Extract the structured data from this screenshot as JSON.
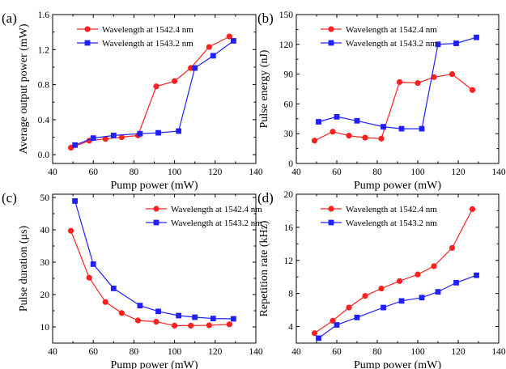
{
  "chart_data": [
    {
      "type": "line",
      "panel_label": "(a)",
      "xlabel": "Pump power (mW)",
      "ylabel": "Average output power (mW)",
      "xlim": [
        40,
        140
      ],
      "ylim": [
        -0.1,
        1.6
      ],
      "xticks": [
        40,
        60,
        80,
        100,
        120,
        140
      ],
      "yticks": [
        0.0,
        0.4,
        0.8,
        1.2,
        1.6
      ],
      "ytick_labels": [
        "0.0",
        "0.4",
        "0.8",
        "1.2",
        "1.6"
      ],
      "legend_position": "top-left",
      "series": [
        {
          "name": "Wavelength at 1542.4 nm",
          "color": "#ff2020",
          "marker": "circle",
          "x": [
            49,
            58,
            66,
            74,
            82,
            91,
            100,
            108,
            117,
            127
          ],
          "y": [
            0.08,
            0.16,
            0.18,
            0.2,
            0.22,
            0.78,
            0.84,
            0.99,
            1.23,
            1.35
          ]
        },
        {
          "name": "Wavelength at 1543.2 nm",
          "color": "#2020ff",
          "marker": "square",
          "x": [
            51,
            60,
            70,
            83,
            92,
            102,
            110,
            119,
            129
          ],
          "y": [
            0.11,
            0.19,
            0.22,
            0.24,
            0.25,
            0.27,
            0.99,
            1.13,
            1.3
          ]
        }
      ]
    },
    {
      "type": "line",
      "panel_label": "(b)",
      "xlabel": "Pump power (mW)",
      "ylabel": "Pulse energy (nJ)",
      "xlim": [
        40,
        140
      ],
      "ylim": [
        0,
        150
      ],
      "xticks": [
        40,
        60,
        80,
        100,
        120,
        140
      ],
      "yticks": [
        0,
        30,
        60,
        90,
        120,
        150
      ],
      "ytick_labels": [
        "0",
        "30",
        "60",
        "90",
        "120",
        "150"
      ],
      "legend_position": "top-left",
      "series": [
        {
          "name": "Wavelength at 1542.4 nm",
          "color": "#ff2020",
          "marker": "circle",
          "x": [
            49,
            58,
            66,
            74,
            82,
            91,
            100,
            108,
            117,
            127
          ],
          "y": [
            23,
            32,
            28,
            26,
            25,
            82,
            81,
            87,
            90,
            74
          ]
        },
        {
          "name": "Wavelength at 1543.2 nm",
          "color": "#2020ff",
          "marker": "square",
          "x": [
            51,
            60,
            70,
            83,
            92,
            102,
            110,
            119,
            129
          ],
          "y": [
            42,
            47,
            43,
            37,
            35,
            35,
            120,
            121,
            127
          ]
        }
      ]
    },
    {
      "type": "line",
      "panel_label": "(c)",
      "xlabel": "Pump power (mW)",
      "ylabel": "Pulse duration (μs)",
      "xlim": [
        40,
        140
      ],
      "ylim": [
        5,
        51
      ],
      "xticks": [
        40,
        60,
        80,
        100,
        120,
        140
      ],
      "yticks": [
        10,
        20,
        30,
        40,
        50
      ],
      "ytick_labels": [
        "10",
        "20",
        "30",
        "40",
        "50"
      ],
      "legend_position": "top-right",
      "series": [
        {
          "name": "Wavelength at 1542.4 nm",
          "color": "#ff2020",
          "marker": "circle",
          "x": [
            49,
            58,
            66,
            74,
            82,
            91,
            100,
            108,
            117,
            127
          ],
          "y": [
            39.7,
            25.2,
            17.7,
            14.3,
            12.0,
            11.6,
            10.4,
            10.4,
            10.5,
            10.8
          ]
        },
        {
          "name": "Wavelength at 1543.2 nm",
          "color": "#2020ff",
          "marker": "square",
          "x": [
            51,
            60,
            70,
            83,
            92,
            102,
            110,
            119,
            129
          ],
          "y": [
            48.9,
            29.4,
            21.9,
            16.6,
            14.8,
            13.5,
            13.0,
            12.6,
            12.5
          ]
        }
      ]
    },
    {
      "type": "line",
      "panel_label": "(d)",
      "xlabel": "Pump power (mW)",
      "ylabel": "Repetition rate (kHz)",
      "xlim": [
        40,
        140
      ],
      "ylim": [
        2,
        20
      ],
      "xticks": [
        40,
        60,
        80,
        100,
        120,
        140
      ],
      "yticks": [
        4,
        8,
        12,
        16,
        20
      ],
      "ytick_labels": [
        "4",
        "8",
        "12",
        "16",
        "20"
      ],
      "legend_position": "top-left",
      "series": [
        {
          "name": "Wavelength at 1542.4 nm",
          "color": "#ff2020",
          "marker": "circle",
          "x": [
            49,
            58,
            66,
            74,
            82,
            91,
            100,
            108,
            117,
            127
          ],
          "y": [
            3.2,
            4.7,
            6.3,
            7.7,
            8.6,
            9.5,
            10.3,
            11.3,
            13.5,
            18.2
          ]
        },
        {
          "name": "Wavelength at 1543.2 nm",
          "color": "#2020ff",
          "marker": "square",
          "x": [
            51,
            60,
            70,
            83,
            92,
            102,
            110,
            119,
            129
          ],
          "y": [
            2.6,
            4.2,
            5.1,
            6.3,
            7.1,
            7.5,
            8.2,
            9.3,
            10.2
          ]
        }
      ]
    }
  ]
}
